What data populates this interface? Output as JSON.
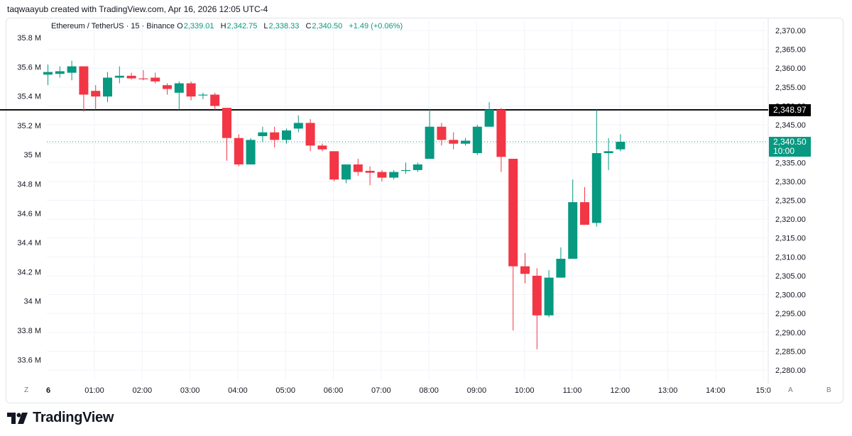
{
  "caption": "taqwaayub created with TradingView.com, Apr 16, 2026 12:05 UTC-4",
  "legend": {
    "symbol": "Ethereum / TetherUS · 15 · Binance",
    "o_label": "O",
    "o_value": "2,339.01",
    "h_label": "H",
    "h_value": "2,342.75",
    "l_label": "L",
    "l_value": "2,338.33",
    "c_label": "C",
    "c_value": "2,340.50",
    "change": "+1.49 (+0.06%)"
  },
  "price_tags": {
    "level": "2,348.97",
    "last": "2,340.50",
    "countdown": "10:00"
  },
  "corners": {
    "left": "Z",
    "mid": "A",
    "right": "B"
  },
  "brand": "TradingView",
  "colors": {
    "up": "#089981",
    "down": "#f23645",
    "grid": "#f0f3fa",
    "text": "#131722"
  },
  "chart_data": {
    "type": "candlestick",
    "title": "Ethereum / TetherUS · 15 · Binance",
    "right_axis": {
      "ticks": [
        "2,370.00",
        "2,365.00",
        "2,360.00",
        "2,355.00",
        "2,350.00",
        "2,345.00",
        "2,340.00",
        "2,335.00",
        "2,330.00",
        "2,325.00",
        "2,320.00",
        "2,315.00",
        "2,310.00",
        "2,305.00",
        "2,300.00",
        "2,295.00",
        "2,290.00",
        "2,285.00",
        "2,280.00"
      ],
      "range": [
        2278,
        2373
      ]
    },
    "left_axis": {
      "ticks": [
        "35.8 M",
        "35.6 M",
        "35.4 M",
        "35.2 M",
        "35 M",
        "34.8 M",
        "34.6 M",
        "34.4 M",
        "34.2 M",
        "34 M",
        "33.8 M",
        "33.6 M"
      ]
    },
    "x_axis": {
      "ticks": [
        "6",
        "01:00",
        "02:00",
        "03:00",
        "04:00",
        "05:00",
        "06:00",
        "07:00",
        "08:00",
        "09:00",
        "10:00",
        "11:00",
        "12:00",
        "13:00",
        "14:00",
        "15:0"
      ]
    },
    "horizontal_line": 2348.97,
    "last_price": 2340.5,
    "candles": [
      {
        "o": 2358.3,
        "h": 2361.0,
        "l": 2355.5,
        "c": 2359.0
      },
      {
        "o": 2358.5,
        "h": 2360.5,
        "l": 2357.5,
        "c": 2359.2
      },
      {
        "o": 2358.8,
        "h": 2362.0,
        "l": 2356.8,
        "c": 2360.5
      },
      {
        "o": 2360.5,
        "h": 2360.5,
        "l": 2348.5,
        "c": 2353.0
      },
      {
        "o": 2354.0,
        "h": 2355.5,
        "l": 2349.0,
        "c": 2352.5
      },
      {
        "o": 2352.5,
        "h": 2359.0,
        "l": 2351.0,
        "c": 2357.5
      },
      {
        "o": 2357.5,
        "h": 2360.5,
        "l": 2356.0,
        "c": 2358.0
      },
      {
        "o": 2358.0,
        "h": 2358.8,
        "l": 2357.0,
        "c": 2357.3
      },
      {
        "o": 2357.3,
        "h": 2359.5,
        "l": 2356.8,
        "c": 2357.2
      },
      {
        "o": 2357.5,
        "h": 2358.8,
        "l": 2356.0,
        "c": 2356.5
      },
      {
        "o": 2355.5,
        "h": 2356.0,
        "l": 2353.0,
        "c": 2354.5
      },
      {
        "o": 2353.5,
        "h": 2356.5,
        "l": 2349.0,
        "c": 2356.0
      },
      {
        "o": 2356.0,
        "h": 2356.5,
        "l": 2351.5,
        "c": 2352.5
      },
      {
        "o": 2352.8,
        "h": 2353.5,
        "l": 2351.8,
        "c": 2353.0
      },
      {
        "o": 2353.0,
        "h": 2353.5,
        "l": 2349.0,
        "c": 2350.0
      },
      {
        "o": 2349.5,
        "h": 2349.5,
        "l": 2335.5,
        "c": 2341.5
      },
      {
        "o": 2341.5,
        "h": 2342.5,
        "l": 2334.0,
        "c": 2334.5
      },
      {
        "o": 2334.5,
        "h": 2341.5,
        "l": 2334.5,
        "c": 2341.0
      },
      {
        "o": 2342.0,
        "h": 2344.5,
        "l": 2340.5,
        "c": 2343.0
      },
      {
        "o": 2343.0,
        "h": 2344.5,
        "l": 2339.0,
        "c": 2341.0
      },
      {
        "o": 2341.0,
        "h": 2344.0,
        "l": 2340.0,
        "c": 2343.5
      },
      {
        "o": 2344.0,
        "h": 2347.5,
        "l": 2343.0,
        "c": 2345.5
      },
      {
        "o": 2345.5,
        "h": 2346.5,
        "l": 2338.0,
        "c": 2339.5
      },
      {
        "o": 2339.5,
        "h": 2340.0,
        "l": 2338.0,
        "c": 2338.5
      },
      {
        "o": 2338.0,
        "h": 2338.0,
        "l": 2330.0,
        "c": 2330.5
      },
      {
        "o": 2330.5,
        "h": 2334.5,
        "l": 2329.5,
        "c": 2334.5
      },
      {
        "o": 2334.5,
        "h": 2336.0,
        "l": 2331.5,
        "c": 2332.5
      },
      {
        "o": 2332.8,
        "h": 2334.0,
        "l": 2329.0,
        "c": 2332.3
      },
      {
        "o": 2332.5,
        "h": 2333.0,
        "l": 2330.0,
        "c": 2331.0
      },
      {
        "o": 2331.0,
        "h": 2333.0,
        "l": 2330.5,
        "c": 2332.5
      },
      {
        "o": 2332.8,
        "h": 2335.0,
        "l": 2332.0,
        "c": 2333.0
      },
      {
        "o": 2333.0,
        "h": 2335.0,
        "l": 2332.5,
        "c": 2334.5
      },
      {
        "o": 2336.0,
        "h": 2349.0,
        "l": 2336.0,
        "c": 2344.5
      },
      {
        "o": 2344.5,
        "h": 2345.5,
        "l": 2339.5,
        "c": 2341.0
      },
      {
        "o": 2341.0,
        "h": 2343.0,
        "l": 2338.5,
        "c": 2340.0
      },
      {
        "o": 2340.0,
        "h": 2341.5,
        "l": 2339.5,
        "c": 2340.8
      },
      {
        "o": 2337.5,
        "h": 2345.0,
        "l": 2337.0,
        "c": 2344.5
      },
      {
        "o": 2344.5,
        "h": 2351.0,
        "l": 2344.5,
        "c": 2349.0
      },
      {
        "o": 2349.0,
        "h": 2349.5,
        "l": 2332.5,
        "c": 2336.5
      },
      {
        "o": 2336.0,
        "h": 2336.0,
        "l": 2290.5,
        "c": 2307.5
      },
      {
        "o": 2307.5,
        "h": 2311.0,
        "l": 2303.0,
        "c": 2305.5
      },
      {
        "o": 2305.0,
        "h": 2307.0,
        "l": 2285.5,
        "c": 2294.5
      },
      {
        "o": 2294.5,
        "h": 2306.5,
        "l": 2294.0,
        "c": 2304.5
      },
      {
        "o": 2304.5,
        "h": 2312.5,
        "l": 2304.5,
        "c": 2309.5
      },
      {
        "o": 2309.5,
        "h": 2330.5,
        "l": 2309.5,
        "c": 2324.5
      },
      {
        "o": 2324.5,
        "h": 2328.5,
        "l": 2318.5,
        "c": 2318.5
      },
      {
        "o": 2319.0,
        "h": 2349.0,
        "l": 2318.0,
        "c": 2337.5
      },
      {
        "o": 2337.5,
        "h": 2341.5,
        "l": 2333.0,
        "c": 2338.0
      },
      {
        "o": 2338.5,
        "h": 2342.5,
        "l": 2338.0,
        "c": 2340.5
      }
    ]
  }
}
